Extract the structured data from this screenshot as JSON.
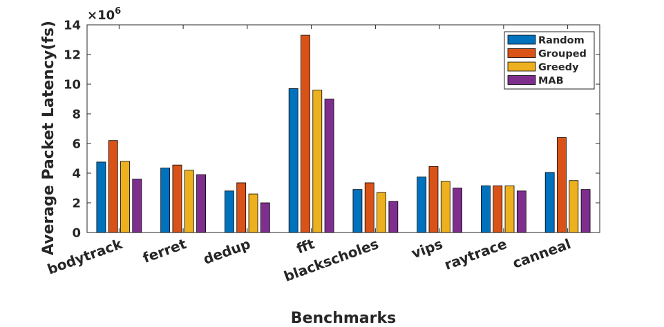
{
  "chart_data": {
    "type": "bar",
    "title": "",
    "xlabel": "Benchmarks",
    "ylabel": "Average Packet Latency(fs)",
    "y_exponent_label": "×10",
    "y_exponent_power": "6",
    "ylim": [
      0,
      14
    ],
    "yticks": [
      "0",
      "2",
      "4",
      "6",
      "8",
      "10",
      "12",
      "14"
    ],
    "ytick_values": [
      0,
      2,
      4,
      6,
      8,
      10,
      12,
      14
    ],
    "grid": false,
    "legend_position": "top-right",
    "categories": [
      "bodytrack",
      "ferret",
      "dedup",
      "fft",
      "blackscholes",
      "vips",
      "raytrace",
      "canneal"
    ],
    "series": [
      {
        "name": "Random",
        "color": "#0072BD",
        "values": [
          4.75,
          4.35,
          2.8,
          9.7,
          2.9,
          3.75,
          3.15,
          4.05
        ]
      },
      {
        "name": "Grouped",
        "color": "#D95319",
        "values": [
          6.2,
          4.55,
          3.35,
          13.3,
          3.35,
          4.45,
          3.15,
          6.4
        ]
      },
      {
        "name": "Greedy",
        "color": "#EDB120",
        "values": [
          4.8,
          4.2,
          2.6,
          9.6,
          2.7,
          3.45,
          3.15,
          3.5
        ]
      },
      {
        "name": "MAB",
        "color": "#7E2F8E",
        "values": [
          3.6,
          3.9,
          2.0,
          9.0,
          2.1,
          3.0,
          2.8,
          2.9
        ]
      }
    ]
  }
}
